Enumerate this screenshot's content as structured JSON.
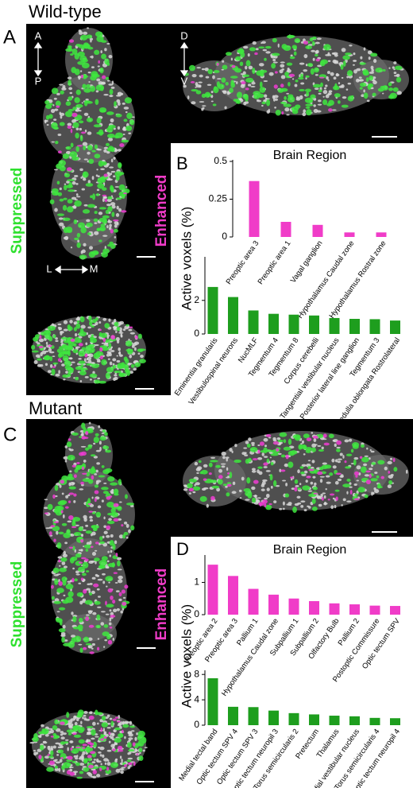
{
  "panels": [
    {
      "title": "Wild-type",
      "letters": [
        "A",
        "B"
      ],
      "left_label": "Suppressed",
      "right_label": "Enhanced",
      "axes": [
        "A",
        "P",
        "D",
        "V",
        "L",
        "M"
      ]
    },
    {
      "title": "Mutant",
      "letters": [
        "C",
        "D"
      ],
      "left_label": "Suppressed",
      "right_label": "Enhanced"
    }
  ],
  "chart_data": [
    {
      "type": "bar",
      "title": "Brain Region",
      "ylabel": "Active voxels (%)",
      "color": "#f03cc8",
      "categories": [
        "Preoptic area 3",
        "Preoptic area 1",
        "Vagal ganglion",
        "Hypothalamus Caudal zone",
        "Hypothalamus Rostral zone"
      ],
      "values": [
        0.37,
        0.1,
        0.08,
        0.03,
        0.03
      ],
      "ylim": [
        0,
        0.5
      ],
      "yticks": [
        0,
        0.25,
        0.5
      ]
    },
    {
      "type": "bar",
      "color": "#1e9e1e",
      "categories": [
        "Eminentia granularis",
        "Vestibulospinal neurons",
        "NucMLF",
        "Tegmentum 4",
        "Tegmentum 8",
        "Corpus cerebelli",
        "Tangential vestibular nucleus",
        "Posterior lateral line ganglion",
        "Tegmentum 3",
        "Medulla oblongata Rostrolateral"
      ],
      "values": [
        2.8,
        2.2,
        1.4,
        1.2,
        1.15,
        1.1,
        0.95,
        0.9,
        0.88,
        0.8
      ],
      "ylim": [
        0,
        4.5
      ],
      "yticks": [
        0,
        2
      ]
    },
    {
      "type": "bar",
      "title": "Brain Region",
      "ylabel": "Active voxels (%)",
      "color": "#f03cc8",
      "categories": [
        "Preoptic area 2",
        "Preoptic area 3",
        "Pallium 1",
        "Hypothalamus Caudal zone",
        "Subpallium 1",
        "Subpallium 2",
        "Olfactory Bulb",
        "Pallium 2",
        "Postoptic Commissure",
        "Optic tectum SPV"
      ],
      "values": [
        1.55,
        1.2,
        0.8,
        0.62,
        0.5,
        0.42,
        0.35,
        0.32,
        0.28,
        0.27
      ],
      "ylim": [
        0,
        1.8
      ],
      "yticks": [
        0,
        1
      ]
    },
    {
      "type": "bar",
      "color": "#1e9e1e",
      "categories": [
        "Medial tectal band",
        "Optic tectum SPV 4",
        "Optic tectum SPV 3",
        "Optic tectum neuropil 3",
        "Torus semicircularis 2",
        "Pretectum",
        "Thalamus",
        "Medial vestibular nucleus",
        "Torus semicircularis 4",
        "Optic tectum neuropil 4"
      ],
      "values": [
        7.4,
        2.9,
        2.85,
        2.3,
        1.9,
        1.7,
        1.5,
        1.4,
        1.15,
        1.1
      ],
      "ylim": [
        0,
        8.4
      ],
      "yticks": [
        0,
        4,
        8
      ]
    }
  ]
}
